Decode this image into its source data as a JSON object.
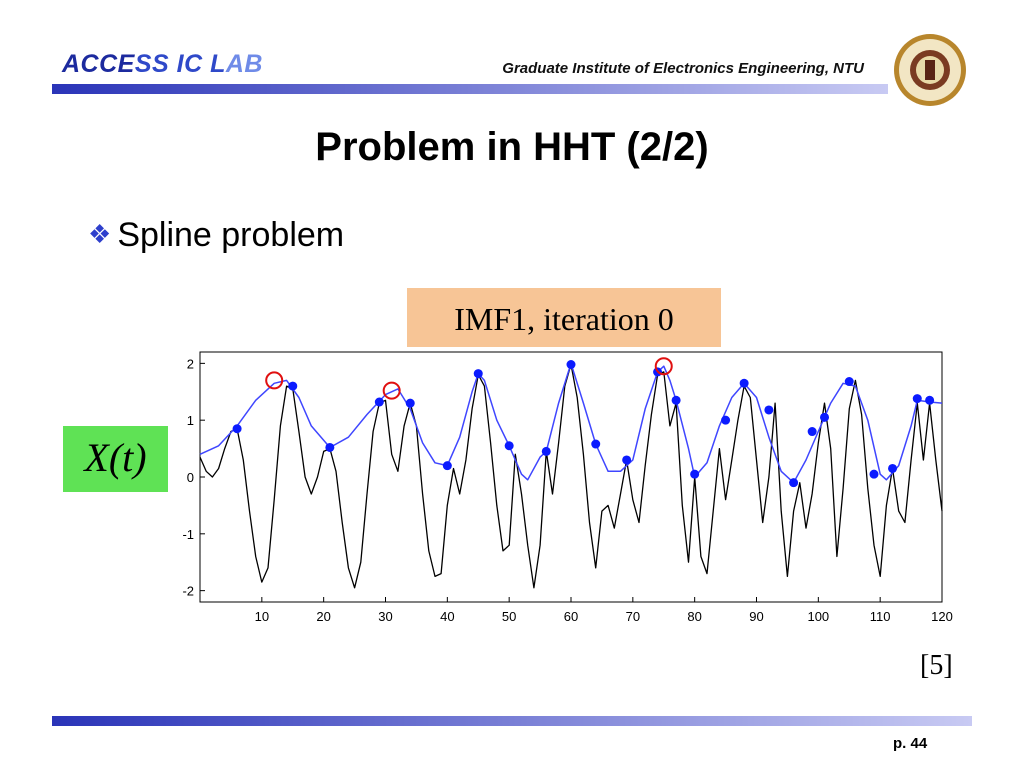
{
  "header": {
    "logo_part1": "ACCE",
    "logo_part2": "SS IC L",
    "logo_part3": "AB",
    "institute": "Graduate Institute of Electronics Engineering, NTU"
  },
  "slide": {
    "title": "Problem in HHT (2/2)",
    "bullet": "Spline problem",
    "reference": "[5]",
    "page": "p. 44"
  },
  "colors": {
    "signal": "#000000",
    "envelope": "#3f46ff",
    "maxima": "#0b1bff",
    "circle_marker": "#e01010",
    "title_box": "#f7c596",
    "series_box": "#5fe255"
  },
  "chart_data": {
    "type": "line",
    "title": "IMF1, iteration 0",
    "ylabel": "X(t)",
    "xlabel": "",
    "xlim": [
      0,
      120
    ],
    "ylim": [
      -2.2,
      2.2
    ],
    "xticks": [
      10,
      20,
      30,
      40,
      50,
      60,
      70,
      80,
      90,
      100,
      110,
      120
    ],
    "yticks": [
      2,
      1,
      0,
      -1,
      -2
    ],
    "grid": false,
    "series": [
      {
        "values": [
          [
            0,
            0.35
          ],
          [
            1,
            0.1
          ],
          [
            2,
            0.0
          ],
          [
            3,
            0.15
          ],
          [
            4,
            0.5
          ],
          [
            5,
            0.8
          ],
          [
            6,
            0.85
          ],
          [
            7,
            0.3
          ],
          [
            8,
            -0.6
          ],
          [
            9,
            -1.4
          ],
          [
            10,
            -1.85
          ],
          [
            11,
            -1.6
          ],
          [
            12,
            -0.4
          ],
          [
            13,
            0.9
          ],
          [
            14,
            1.6
          ],
          [
            15,
            1.55
          ],
          [
            16,
            0.8
          ],
          [
            17,
            0.0
          ],
          [
            18,
            -0.3
          ],
          [
            19,
            0.0
          ],
          [
            20,
            0.45
          ],
          [
            21,
            0.5
          ],
          [
            22,
            0.1
          ],
          [
            23,
            -0.8
          ],
          [
            24,
            -1.6
          ],
          [
            25,
            -1.95
          ],
          [
            26,
            -1.5
          ],
          [
            27,
            -0.3
          ],
          [
            28,
            0.8
          ],
          [
            29,
            1.3
          ],
          [
            30,
            1.35
          ],
          [
            31,
            0.4
          ],
          [
            32,
            0.1
          ],
          [
            33,
            0.9
          ],
          [
            34,
            1.3
          ],
          [
            35,
            0.9
          ],
          [
            36,
            -0.3
          ],
          [
            37,
            -1.3
          ],
          [
            38,
            -1.75
          ],
          [
            39,
            -1.7
          ],
          [
            40,
            -0.5
          ],
          [
            41,
            0.15
          ],
          [
            42,
            -0.3
          ],
          [
            43,
            0.3
          ],
          [
            44,
            1.2
          ],
          [
            45,
            1.8
          ],
          [
            46,
            1.6
          ],
          [
            47,
            0.6
          ],
          [
            48,
            -0.5
          ],
          [
            49,
            -1.3
          ],
          [
            50,
            -1.2
          ],
          [
            51,
            0.4
          ],
          [
            52,
            -0.3
          ],
          [
            53,
            -1.2
          ],
          [
            54,
            -1.95
          ],
          [
            55,
            -1.2
          ],
          [
            56,
            0.45
          ],
          [
            57,
            -0.3
          ],
          [
            58,
            0.6
          ],
          [
            59,
            1.6
          ],
          [
            60,
            1.98
          ],
          [
            61,
            1.4
          ],
          [
            62,
            0.4
          ],
          [
            63,
            -0.8
          ],
          [
            64,
            -1.6
          ],
          [
            65,
            -0.6
          ],
          [
            66,
            -0.5
          ],
          [
            67,
            -0.9
          ],
          [
            68,
            -0.3
          ],
          [
            69,
            0.3
          ],
          [
            70,
            -0.4
          ],
          [
            71,
            -0.8
          ],
          [
            72,
            0.2
          ],
          [
            73,
            1.1
          ],
          [
            74,
            1.8
          ],
          [
            75,
            1.85
          ],
          [
            76,
            0.9
          ],
          [
            77,
            1.3
          ],
          [
            78,
            -0.5
          ],
          [
            79,
            -1.5
          ],
          [
            80,
            0.0
          ],
          [
            81,
            -1.4
          ],
          [
            82,
            -1.7
          ],
          [
            83,
            -0.6
          ],
          [
            84,
            0.5
          ],
          [
            85,
            -0.4
          ],
          [
            86,
            0.3
          ],
          [
            87,
            1.0
          ],
          [
            88,
            1.6
          ],
          [
            89,
            1.4
          ],
          [
            90,
            0.3
          ],
          [
            91,
            -0.8
          ],
          [
            92,
            0.0
          ],
          [
            93,
            1.3
          ],
          [
            94,
            -0.6
          ],
          [
            95,
            -1.75
          ],
          [
            96,
            -0.6
          ],
          [
            97,
            -0.1
          ],
          [
            98,
            -0.9
          ],
          [
            99,
            -0.3
          ],
          [
            100,
            0.6
          ],
          [
            101,
            1.3
          ],
          [
            102,
            0.5
          ],
          [
            103,
            -1.4
          ],
          [
            104,
            -0.2
          ],
          [
            105,
            1.2
          ],
          [
            106,
            1.7
          ],
          [
            107,
            1.1
          ],
          [
            108,
            -0.2
          ],
          [
            109,
            -1.2
          ],
          [
            110,
            -1.75
          ],
          [
            111,
            -0.5
          ],
          [
            112,
            0.15
          ],
          [
            113,
            -0.6
          ],
          [
            114,
            -0.8
          ],
          [
            115,
            0.3
          ],
          [
            116,
            1.3
          ],
          [
            117,
            0.3
          ],
          [
            118,
            1.3
          ],
          [
            119,
            0.3
          ],
          [
            120,
            -0.6
          ]
        ]
      },
      {
        "values": [
          [
            0,
            0.4
          ],
          [
            3,
            0.55
          ],
          [
            6,
            0.9
          ],
          [
            9,
            1.35
          ],
          [
            12,
            1.65
          ],
          [
            14,
            1.7
          ],
          [
            16,
            1.4
          ],
          [
            18,
            0.9
          ],
          [
            21,
            0.52
          ],
          [
            24,
            0.7
          ],
          [
            27,
            1.1
          ],
          [
            30,
            1.45
          ],
          [
            32,
            1.55
          ],
          [
            34,
            1.2
          ],
          [
            36,
            0.6
          ],
          [
            38,
            0.25
          ],
          [
            40,
            0.2
          ],
          [
            42,
            0.7
          ],
          [
            44,
            1.5
          ],
          [
            45,
            1.82
          ],
          [
            46,
            1.7
          ],
          [
            48,
            1.0
          ],
          [
            50,
            0.55
          ],
          [
            52,
            0.05
          ],
          [
            53,
            -0.05
          ],
          [
            55,
            0.35
          ],
          [
            56,
            0.45
          ],
          [
            58,
            1.3
          ],
          [
            60,
            2.0
          ],
          [
            62,
            1.3
          ],
          [
            64,
            0.58
          ],
          [
            66,
            0.1
          ],
          [
            68,
            0.1
          ],
          [
            70,
            0.3
          ],
          [
            72,
            1.2
          ],
          [
            74,
            1.85
          ],
          [
            75,
            1.95
          ],
          [
            76,
            1.7
          ],
          [
            77,
            1.35
          ],
          [
            79,
            0.5
          ],
          [
            80,
            0.0
          ],
          [
            82,
            0.25
          ],
          [
            84,
            0.9
          ],
          [
            86,
            1.4
          ],
          [
            88,
            1.65
          ],
          [
            90,
            1.4
          ],
          [
            92,
            0.7
          ],
          [
            94,
            0.1
          ],
          [
            96,
            -0.1
          ],
          [
            98,
            0.3
          ],
          [
            100,
            0.8
          ],
          [
            102,
            1.3
          ],
          [
            104,
            1.65
          ],
          [
            106,
            1.6
          ],
          [
            108,
            1.0
          ],
          [
            110,
            0.05
          ],
          [
            111,
            -0.05
          ],
          [
            113,
            0.2
          ],
          [
            115,
            0.9
          ],
          [
            116,
            1.35
          ],
          [
            118,
            1.32
          ],
          [
            120,
            1.3
          ]
        ]
      }
    ],
    "maxima": [
      [
        6,
        0.85
      ],
      [
        15,
        1.6
      ],
      [
        21,
        0.52
      ],
      [
        29,
        1.32
      ],
      [
        34,
        1.3
      ],
      [
        40,
        0.2
      ],
      [
        45,
        1.82
      ],
      [
        50,
        0.55
      ],
      [
        56,
        0.45
      ],
      [
        60,
        1.98
      ],
      [
        64,
        0.58
      ],
      [
        69,
        0.3
      ],
      [
        74,
        1.85
      ],
      [
        77,
        1.35
      ],
      [
        80,
        0.05
      ],
      [
        85,
        1.0
      ],
      [
        88,
        1.65
      ],
      [
        92,
        1.18
      ],
      [
        96,
        -0.1
      ],
      [
        99,
        0.8
      ],
      [
        101,
        1.05
      ],
      [
        105,
        1.68
      ],
      [
        109,
        0.05
      ],
      [
        112,
        0.15
      ],
      [
        116,
        1.38
      ],
      [
        118,
        1.35
      ]
    ],
    "problem_points": [
      [
        12,
        1.7
      ],
      [
        31,
        1.52
      ],
      [
        75,
        1.95
      ]
    ]
  }
}
